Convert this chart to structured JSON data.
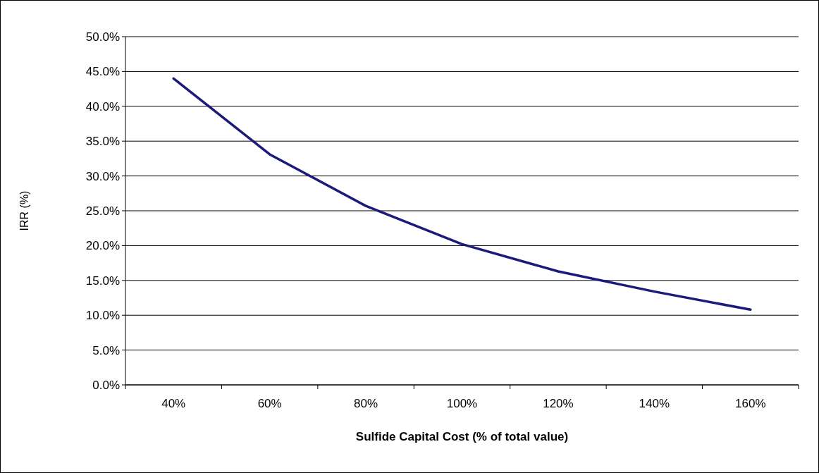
{
  "chart_data": {
    "type": "line",
    "xlabel": "Sulfide  Capital Cost (% of total value)",
    "ylabel": "IRR (%)",
    "categories": [
      "40%",
      "60%",
      "80%",
      "100%",
      "120%",
      "140%",
      "160%"
    ],
    "series": [
      {
        "color": "#1c1a7a",
        "values": [
          44.0,
          33.1,
          25.7,
          20.2,
          16.3,
          13.4,
          10.8
        ]
      }
    ],
    "ylim": [
      0,
      50
    ],
    "yticks": [
      {
        "value": 0,
        "label": "0.0%"
      },
      {
        "value": 5,
        "label": "5.0%"
      },
      {
        "value": 10,
        "label": "10.0%"
      },
      {
        "value": 15,
        "label": "15.0%"
      },
      {
        "value": 20,
        "label": "20.0%"
      },
      {
        "value": 25,
        "label": "25.0%"
      },
      {
        "value": 30,
        "label": "30.0%"
      },
      {
        "value": 35,
        "label": "35.0%"
      },
      {
        "value": 40,
        "label": "40.0%"
      },
      {
        "value": 45,
        "label": "45.0%"
      },
      {
        "value": 50,
        "label": "50.0%"
      }
    ],
    "grid": "y",
    "marker": "none",
    "line_style": "solid"
  }
}
